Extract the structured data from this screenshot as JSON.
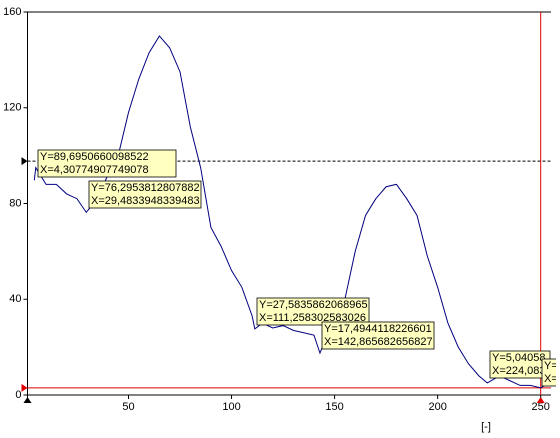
{
  "chart_data": {
    "type": "line",
    "x_label": "[-]",
    "xlim": [
      1,
      255
    ],
    "ylim": [
      0,
      160
    ],
    "xticks": [
      50,
      100,
      150,
      200,
      250
    ],
    "yticks": [
      0,
      40,
      80,
      120,
      160
    ],
    "series": [
      {
        "color": "#000080",
        "x": [
          4.3,
          5,
          10,
          15,
          20,
          25,
          29.5,
          35,
          40,
          45,
          50,
          55,
          60,
          65,
          70,
          75,
          80,
          85,
          90,
          95,
          100,
          105,
          110,
          111.3,
          115,
          120,
          125,
          130,
          135,
          140,
          142.9,
          145,
          150,
          155,
          160,
          165,
          170,
          175,
          180,
          185,
          190,
          195,
          200,
          205,
          210,
          215,
          220,
          224.1,
          230,
          235,
          240,
          245,
          250,
          252
        ],
        "values": [
          89.7,
          95,
          88,
          88,
          84,
          82,
          76.3,
          82,
          92,
          100,
          118,
          132,
          143,
          150,
          145,
          135,
          112,
          95,
          70,
          62,
          52,
          45,
          33,
          27.6,
          30,
          28,
          29,
          27,
          26,
          25,
          17.5,
          22,
          28,
          40,
          60,
          75,
          82,
          87,
          88,
          82,
          75,
          58,
          45,
          30,
          20,
          13,
          8,
          5.04,
          8,
          6,
          4,
          4,
          3,
          4
        ]
      }
    ],
    "markers": {
      "cursor_x": 1,
      "cursor_y": 97.7,
      "limit_x": 250,
      "limit_y": 3
    },
    "annotations": [
      [
        "Y=89,6950660098522",
        "X=4,30774907749078"
      ],
      [
        "Y=76,2953812807882",
        "X=29,4833948339483"
      ],
      [
        "Y=27,5835862068965",
        "X=111,258302583026"
      ],
      [
        "Y=17,4944118226601",
        "X=142,865682656827"
      ],
      [
        "Y=5,04058",
        "X=224,083"
      ],
      [
        "Y=",
        "X="
      ]
    ]
  }
}
